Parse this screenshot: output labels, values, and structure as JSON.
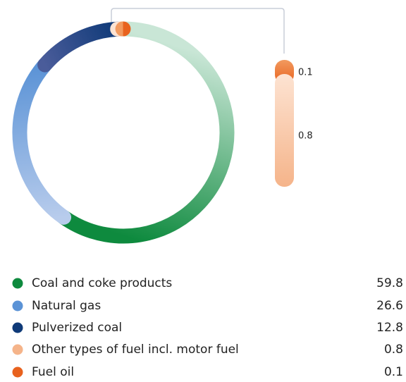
{
  "chart_data": {
    "type": "donut",
    "categories": [
      "Coal and coke products",
      "Natural gas",
      "Pulverized coal",
      "Other types of fuel incl. motor fuel",
      "Fuel oil"
    ],
    "values": [
      59.8,
      26.6,
      12.8,
      0.8,
      0.1
    ],
    "colors": [
      "#0e8a3e",
      "#5b93d6",
      "#0f3a78",
      "#f5b48a",
      "#e8621e"
    ],
    "light_colors": [
      "#c9e6d6",
      "#b8ccec",
      "#4a5c9a",
      "#fde3d2",
      "#f29a5f"
    ]
  }
}
